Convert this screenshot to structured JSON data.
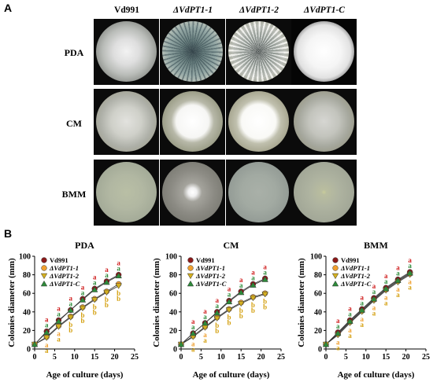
{
  "panel_a": {
    "letter": "A",
    "columns": [
      "Vd991",
      "ΔVdPT1-1",
      "ΔVdPT1-2",
      "ΔVdPT1-C"
    ],
    "rows": [
      "PDA",
      "CM",
      "BMM"
    ]
  },
  "panel_b": {
    "letter": "B"
  },
  "colors": {
    "Vd991": "#8b1a1a",
    "dVdPT1-1": "#f0a030",
    "dVdPT1-2": "#d4b020",
    "dVdPT1-C": "#2e8b3a",
    "label_a": "#d02020",
    "label_b": "#d4a010"
  },
  "chart_data": [
    {
      "type": "line",
      "title": "PDA",
      "xlabel": "Age of culture (days)",
      "ylabel": "Colonies diameter (mm)",
      "xlim": [
        0,
        25
      ],
      "ylim": [
        0,
        100
      ],
      "xticks": [
        0,
        5,
        10,
        15,
        20,
        25
      ],
      "yticks": [
        0,
        20,
        40,
        60,
        80,
        100
      ],
      "x": [
        0,
        3,
        6,
        9,
        12,
        15,
        18,
        21
      ],
      "series": [
        {
          "name": "Vd991",
          "values": [
            5,
            19,
            31,
            42,
            54,
            65,
            73,
            80
          ],
          "letters": [
            "",
            "a",
            "a",
            "a",
            "a",
            "a",
            "a",
            "a"
          ]
        },
        {
          "name": "ΔVdPT1-1",
          "values": [
            5,
            13,
            25,
            35,
            45,
            54,
            62,
            70
          ],
          "letters": [
            "",
            "a",
            "a",
            "b",
            "b",
            "b",
            "b",
            "b"
          ]
        },
        {
          "name": "ΔVdPT1-2",
          "values": [
            5,
            12,
            24,
            34,
            44,
            53,
            61,
            68
          ],
          "letters": [
            "",
            "a",
            "a",
            "b",
            "b",
            "b",
            "b",
            "b"
          ]
        },
        {
          "name": "ΔVdPT1-C",
          "values": [
            5,
            18,
            30,
            42,
            53,
            64,
            72,
            79
          ],
          "letters": [
            "",
            "a",
            "a",
            "a",
            "a",
            "a",
            "a",
            "a"
          ]
        }
      ]
    },
    {
      "type": "line",
      "title": "CM",
      "xlabel": "Age of culture (days)",
      "ylabel": "Colonies diameter (mm)",
      "xlim": [
        0,
        25
      ],
      "ylim": [
        0,
        100
      ],
      "xticks": [
        0,
        5,
        10,
        15,
        20,
        25
      ],
      "yticks": [
        0,
        20,
        40,
        60,
        80,
        100
      ],
      "x": [
        0,
        3,
        6,
        9,
        12,
        15,
        18,
        21
      ],
      "series": [
        {
          "name": "Vd991",
          "values": [
            5,
            17,
            28,
            40,
            52,
            62,
            70,
            76
          ],
          "letters": [
            "",
            "a",
            "a",
            "a",
            "a",
            "a",
            "a",
            "a"
          ]
        },
        {
          "name": "ΔVdPT1-1",
          "values": [
            5,
            14,
            24,
            34,
            43,
            50,
            56,
            60
          ],
          "letters": [
            "",
            "a",
            "a",
            "b",
            "b",
            "b",
            "b",
            "b"
          ]
        },
        {
          "name": "ΔVdPT1-2",
          "values": [
            5,
            13,
            23,
            33,
            42,
            49,
            55,
            59
          ],
          "letters": [
            "",
            "a",
            "a",
            "b",
            "b",
            "b",
            "b",
            "b"
          ]
        },
        {
          "name": "ΔVdPT1-C",
          "values": [
            5,
            17,
            28,
            39,
            51,
            61,
            69,
            75
          ],
          "letters": [
            "",
            "a",
            "a",
            "a",
            "a",
            "a",
            "a",
            "a"
          ]
        }
      ]
    },
    {
      "type": "line",
      "title": "BMM",
      "xlabel": "Age of culture (days)",
      "ylabel": "Colonies diameter (mm)",
      "xlim": [
        0,
        25
      ],
      "ylim": [
        0,
        100
      ],
      "xticks": [
        0,
        5,
        10,
        15,
        20,
        25
      ],
      "yticks": [
        0,
        20,
        40,
        60,
        80,
        100
      ],
      "x": [
        0,
        3,
        6,
        9,
        12,
        15,
        18,
        21
      ],
      "series": [
        {
          "name": "Vd991",
          "values": [
            5,
            18,
            31,
            43,
            55,
            66,
            75,
            83
          ],
          "letters": [
            "",
            "a",
            "a",
            "a",
            "a",
            "a",
            "a",
            "a"
          ]
        },
        {
          "name": "ΔVdPT1-1",
          "values": [
            5,
            16,
            29,
            41,
            53,
            64,
            73,
            81
          ],
          "letters": [
            "",
            "a",
            "a",
            "a",
            "a",
            "a",
            "a",
            "a"
          ]
        },
        {
          "name": "ΔVdPT1-2",
          "values": [
            5,
            15,
            28,
            40,
            52,
            63,
            72,
            80
          ],
          "letters": [
            "",
            "a",
            "a",
            "a",
            "a",
            "a",
            "a",
            "a"
          ]
        },
        {
          "name": "ΔVdPT1-C",
          "values": [
            5,
            17,
            30,
            42,
            54,
            65,
            74,
            82
          ],
          "letters": [
            "",
            "a",
            "a",
            "a",
            "a",
            "a",
            "a",
            "a"
          ]
        }
      ]
    }
  ]
}
